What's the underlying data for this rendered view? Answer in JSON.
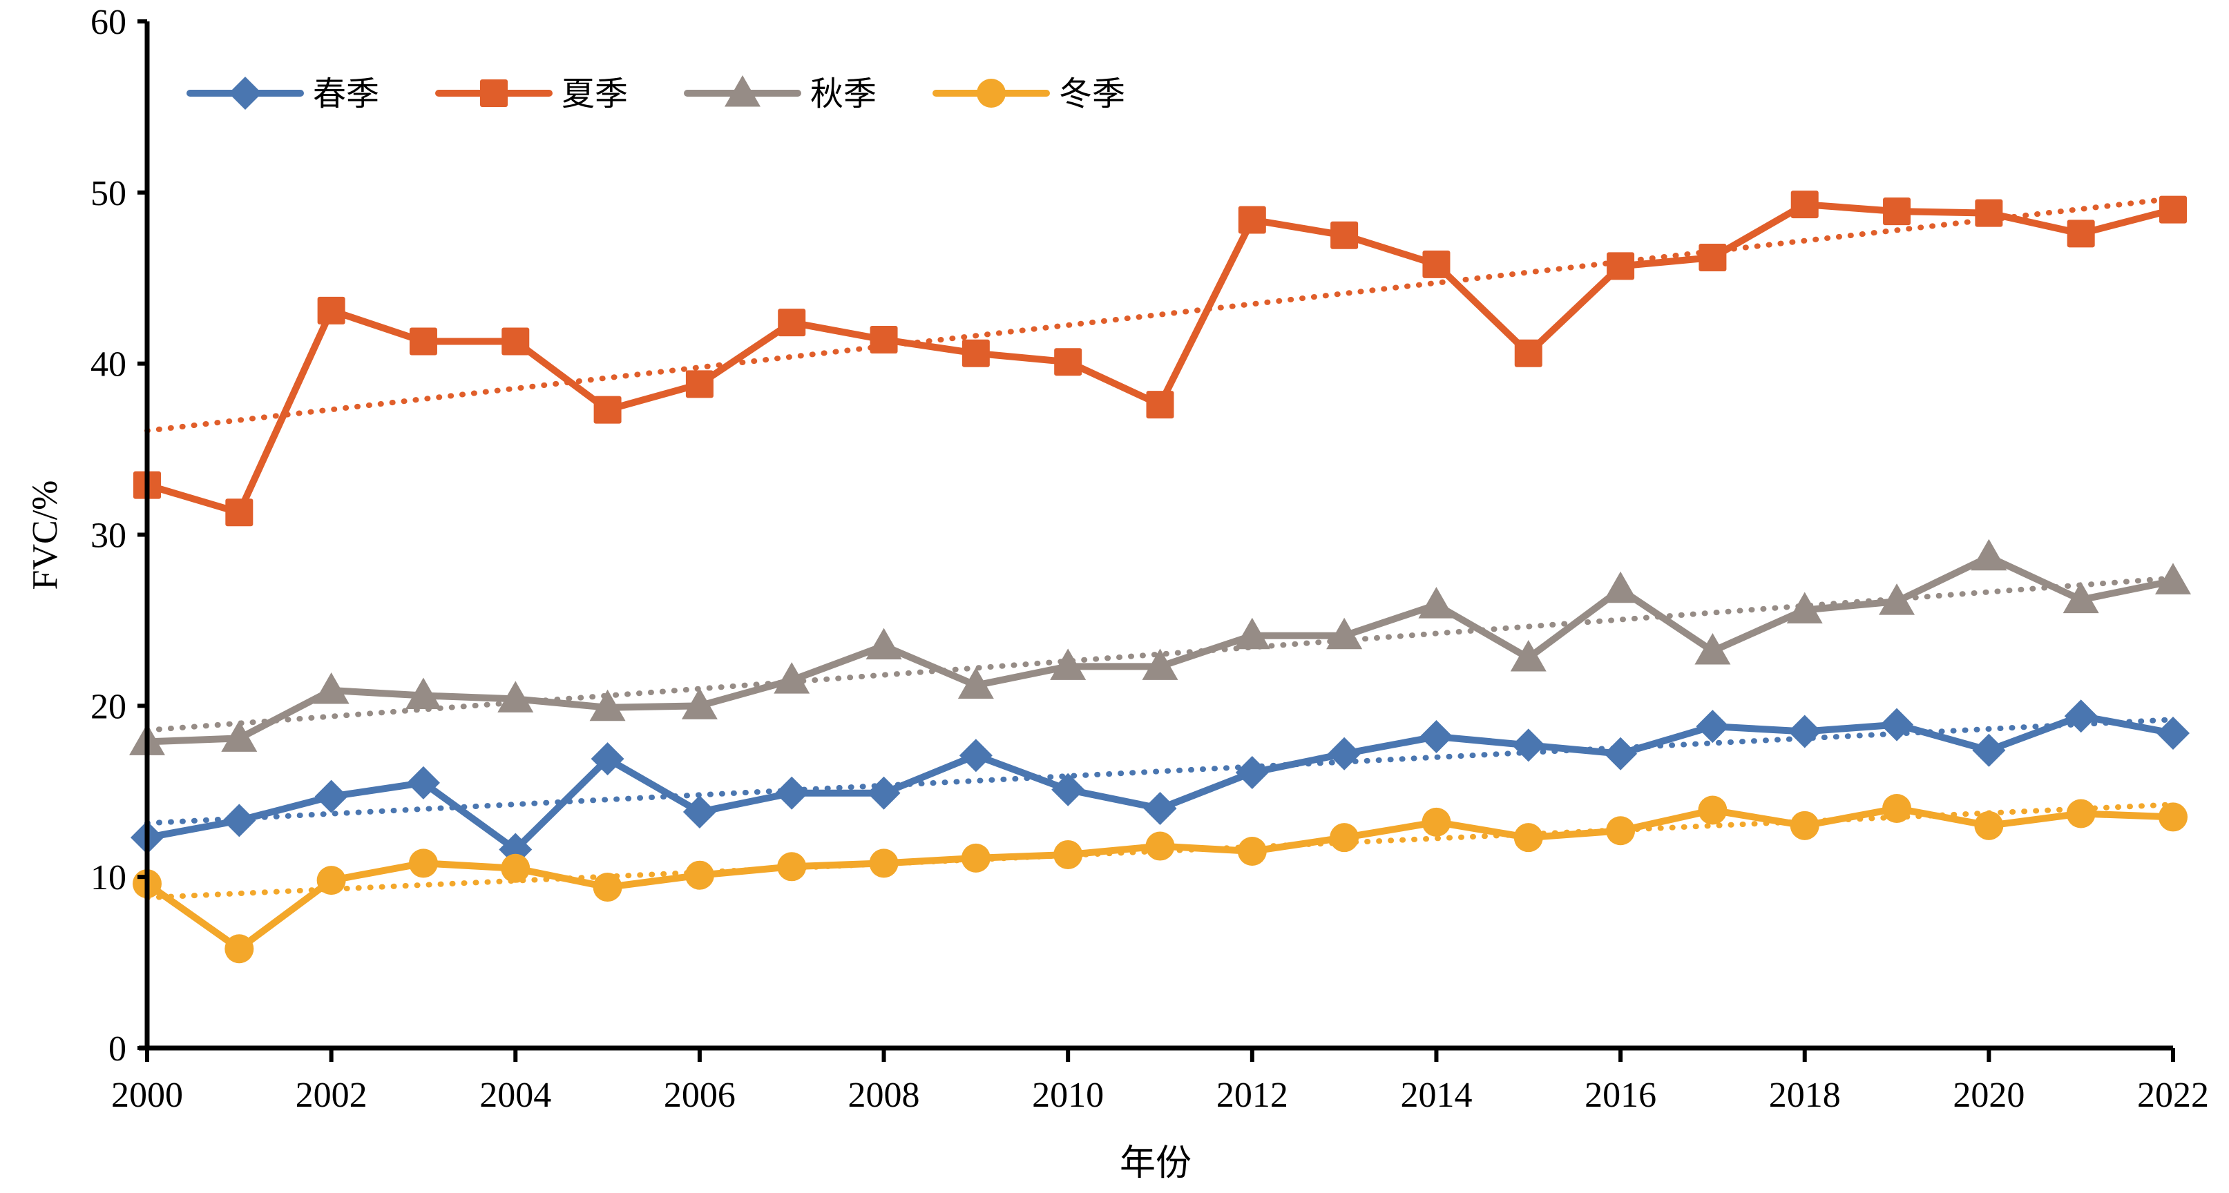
{
  "chart_data": {
    "type": "line",
    "title": "",
    "xlabel": "年份",
    "ylabel": "FVC/%",
    "xlim": [
      2000,
      2022
    ],
    "ylim": [
      0,
      60
    ],
    "x_ticks": [
      2000,
      2002,
      2004,
      2006,
      2008,
      2010,
      2012,
      2014,
      2016,
      2018,
      2020,
      2022
    ],
    "x_tick_labels": [
      "2000",
      "2002",
      "2004",
      "2006",
      "2008",
      "2010",
      "2012",
      "2014",
      "2016",
      "2018",
      "2020",
      "2022"
    ],
    "y_ticks": [
      0,
      10,
      20,
      30,
      40,
      50,
      60
    ],
    "y_tick_labels": [
      "0",
      "10",
      "20",
      "30",
      "40",
      "50",
      "60"
    ],
    "grid": false,
    "legend_position": "top-left",
    "trendlines": "linear (dotted), one per series",
    "x": [
      2000,
      2001,
      2002,
      2003,
      2004,
      2005,
      2006,
      2007,
      2008,
      2009,
      2010,
      2011,
      2012,
      2013,
      2014,
      2015,
      2016,
      2017,
      2018,
      2019,
      2020,
      2021,
      2022
    ],
    "series": [
      {
        "name": "春季",
        "color": "#4A76B0",
        "marker": "diamond",
        "values": [
          12.3,
          13.3,
          14.7,
          15.5,
          11.6,
          16.9,
          13.8,
          14.9,
          14.9,
          17.1,
          15.1,
          14.0,
          16.1,
          17.2,
          18.2,
          17.7,
          17.2,
          18.8,
          18.5,
          18.9,
          17.4,
          19.4,
          18.4
        ]
      },
      {
        "name": "夏季",
        "color": "#E05E2A",
        "marker": "square",
        "values": [
          32.9,
          31.3,
          43.1,
          41.3,
          41.3,
          37.3,
          38.8,
          42.4,
          41.4,
          40.6,
          40.1,
          37.6,
          48.4,
          47.5,
          45.8,
          40.6,
          45.7,
          46.2,
          49.3,
          48.9,
          48.8,
          47.6,
          49.0
        ]
      },
      {
        "name": "秋季",
        "color": "#968C86",
        "marker": "triangle",
        "values": [
          17.9,
          18.1,
          20.9,
          20.6,
          20.4,
          19.9,
          20.0,
          21.5,
          23.5,
          21.2,
          22.3,
          22.3,
          24.1,
          24.1,
          25.9,
          22.8,
          26.8,
          23.2,
          25.6,
          26.1,
          28.7,
          26.2,
          27.3
        ]
      },
      {
        "name": "冬季",
        "color": "#F3A72A",
        "marker": "circle",
        "values": [
          9.6,
          5.8,
          9.8,
          10.8,
          10.5,
          9.4,
          10.1,
          10.6,
          10.8,
          11.1,
          11.3,
          11.8,
          11.5,
          12.3,
          13.2,
          12.3,
          12.7,
          13.9,
          13.0,
          14.0,
          13.0,
          13.7,
          13.5
        ]
      }
    ]
  }
}
